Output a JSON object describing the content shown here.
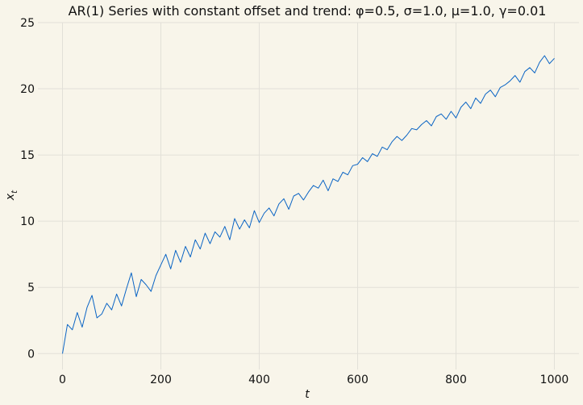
{
  "chart_data": {
    "type": "line",
    "title": "AR(1) Series with constant offset and trend: φ=0.5, σ=1.0, μ=1.0, γ=0.01",
    "xlabel": "t",
    "ylabel": "x_t",
    "ylabel_main": "x",
    "ylabel_sub": "t",
    "xlim": [
      -50,
      1050
    ],
    "ylim": [
      -1.2,
      25
    ],
    "xticks": [
      0,
      200,
      400,
      600,
      800,
      1000
    ],
    "yticks": [
      0,
      5,
      10,
      15,
      20,
      25
    ],
    "grid": true,
    "series": [
      {
        "color": "#0a64c4",
        "x": [
          0,
          10,
          20,
          30,
          40,
          50,
          60,
          70,
          80,
          90,
          100,
          110,
          120,
          130,
          140,
          150,
          160,
          170,
          180,
          190,
          200,
          210,
          220,
          230,
          240,
          250,
          260,
          270,
          280,
          290,
          300,
          310,
          320,
          330,
          340,
          350,
          360,
          370,
          380,
          390,
          400,
          410,
          420,
          430,
          440,
          450,
          460,
          470,
          480,
          490,
          500,
          510,
          520,
          530,
          540,
          550,
          560,
          570,
          580,
          590,
          600,
          610,
          620,
          630,
          640,
          650,
          660,
          670,
          680,
          690,
          700,
          710,
          720,
          730,
          740,
          750,
          760,
          770,
          780,
          790,
          800,
          810,
          820,
          830,
          840,
          850,
          860,
          870,
          880,
          890,
          900,
          910,
          920,
          930,
          940,
          950,
          960,
          970,
          980,
          990,
          1000
        ],
        "values": [
          0.0,
          2.2,
          1.8,
          3.1,
          2.0,
          3.5,
          4.4,
          2.7,
          3.0,
          3.8,
          3.3,
          4.5,
          3.6,
          4.9,
          6.1,
          4.3,
          5.6,
          5.2,
          4.7,
          5.9,
          6.7,
          7.5,
          6.4,
          7.8,
          6.9,
          8.1,
          7.3,
          8.6,
          7.9,
          9.1,
          8.3,
          9.2,
          8.8,
          9.6,
          8.6,
          10.2,
          9.4,
          10.1,
          9.5,
          10.8,
          9.9,
          10.6,
          11.0,
          10.4,
          11.3,
          11.7,
          10.9,
          11.9,
          12.1,
          11.6,
          12.2,
          12.7,
          12.5,
          13.1,
          12.3,
          13.2,
          13.0,
          13.7,
          13.5,
          14.2,
          14.3,
          14.8,
          14.5,
          15.1,
          14.9,
          15.6,
          15.4,
          16.0,
          16.4,
          16.1,
          16.5,
          17.0,
          16.9,
          17.3,
          17.6,
          17.2,
          17.9,
          18.1,
          17.7,
          18.3,
          17.8,
          18.6,
          19.0,
          18.5,
          19.3,
          18.9,
          19.6,
          19.9,
          19.4,
          20.1,
          20.3,
          20.6,
          21.0,
          20.5,
          21.3,
          21.6,
          21.2,
          22.0,
          22.5,
          21.9,
          22.3
        ]
      }
    ]
  }
}
